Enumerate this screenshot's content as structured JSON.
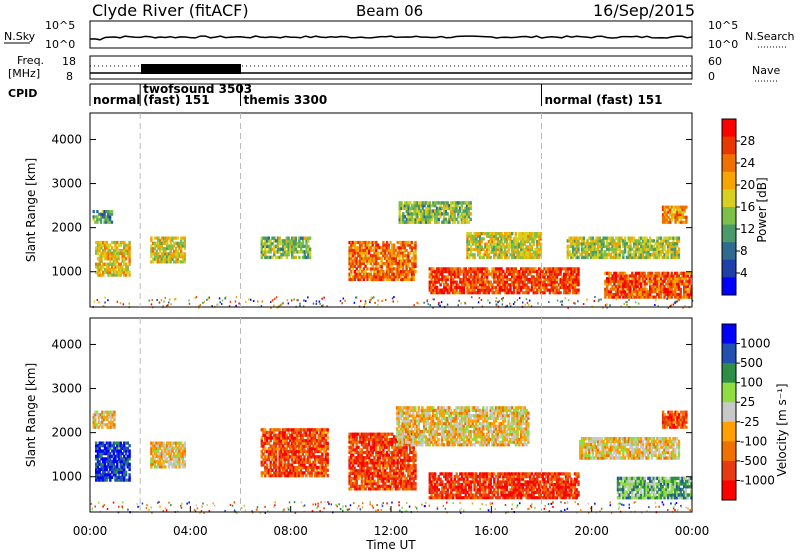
{
  "header": {
    "station": "Clyde River (fitACF)",
    "beam": "Beam 06",
    "date": "16/Sep/2015"
  },
  "top_panels": {
    "nsky_label": "N.Sky",
    "nsky_ticks": [
      "10^5",
      "10^0"
    ],
    "nsearch_label": "N.Search",
    "nsearch_ticks": [
      "10^5",
      "10^0"
    ],
    "freq_label_1": "Freq.",
    "freq_label_2": "[MHz]",
    "freq_ticks": [
      "18",
      "8"
    ],
    "nave_label": "Nave",
    "nave_ticks": [
      "60",
      "0"
    ],
    "cpid_label": "CPID",
    "modes": [
      {
        "label": "normal",
        "start": 0,
        "end": 2
      },
      {
        "label": "twofsound 3503\n(fast) 151",
        "start": 2,
        "end": 6
      },
      {
        "label": "themis 3300",
        "start": 6,
        "end": 18
      },
      {
        "label": "normal (fast) 151",
        "start": 18,
        "end": 24
      }
    ]
  },
  "chart_data": [
    {
      "type": "heatmap",
      "name": "power",
      "xlabel": "",
      "ylabel": "Slant Range [km]",
      "xlim": [
        0,
        24
      ],
      "ylim": [
        200,
        4600
      ],
      "yticks": [
        "1000",
        "2000",
        "3000",
        "4000"
      ],
      "colorbar_label": "Power [dB]",
      "colorbar_ticks": [
        "28",
        "24",
        "20",
        "16",
        "12",
        "8",
        "4"
      ],
      "colors": [
        "#0000ff",
        "#1e3fa8",
        "#2e6b8e",
        "#4a9a6a",
        "#7cc04a",
        "#d8d020",
        "#f5a400",
        "#f07000",
        "#e83800",
        "#ff0000"
      ],
      "blobs": [
        {
          "t0": 0.2,
          "t1": 1.6,
          "r0": 900,
          "r1": 1700,
          "level": 0.6
        },
        {
          "t0": 0.1,
          "t1": 0.9,
          "r0": 2100,
          "r1": 2400,
          "level": 0.35
        },
        {
          "t0": 2.4,
          "t1": 3.8,
          "r0": 1200,
          "r1": 1800,
          "level": 0.55
        },
        {
          "t0": 6.8,
          "t1": 8.8,
          "r0": 1300,
          "r1": 1800,
          "level": 0.45
        },
        {
          "t0": 10.3,
          "t1": 13.0,
          "r0": 800,
          "r1": 1700,
          "level": 0.75
        },
        {
          "t0": 12.3,
          "t1": 15.2,
          "r0": 2100,
          "r1": 2600,
          "level": 0.45
        },
        {
          "t0": 13.5,
          "t1": 19.5,
          "r0": 500,
          "r1": 1100,
          "level": 0.85
        },
        {
          "t0": 15.0,
          "t1": 18.0,
          "r0": 1300,
          "r1": 1900,
          "level": 0.55
        },
        {
          "t0": 19.0,
          "t1": 23.5,
          "r0": 1300,
          "r1": 1800,
          "level": 0.5
        },
        {
          "t0": 20.5,
          "t1": 24.0,
          "r0": 400,
          "r1": 1000,
          "level": 0.8
        },
        {
          "t0": 22.8,
          "t1": 23.8,
          "r0": 2100,
          "r1": 2500,
          "level": 0.7
        }
      ]
    },
    {
      "type": "heatmap",
      "name": "velocity",
      "xlabel": "Time UT",
      "ylabel": "Slant Range [km]",
      "xlim": [
        0,
        24
      ],
      "ylim": [
        200,
        4600
      ],
      "xticks": [
        "00:00",
        "04:00",
        "08:00",
        "12:00",
        "16:00",
        "20:00",
        "00:00"
      ],
      "yticks": [
        "1000",
        "2000",
        "3000",
        "4000"
      ],
      "colorbar_label": "Velocity [m s⁻¹]",
      "colorbar_ticks": [
        "1000",
        "500",
        "100",
        "25",
        "-25",
        "-100",
        "-500",
        "-1000"
      ],
      "colors": [
        "#ff0000",
        "#e83a10",
        "#f07000",
        "#ffa000",
        "#c8c8c8",
        "#8fdd40",
        "#2e8e48",
        "#2050b0",
        "#0000ff"
      ],
      "blobs": [
        {
          "t0": 0.2,
          "t1": 1.6,
          "r0": 900,
          "r1": 1800,
          "level": 0.88
        },
        {
          "t0": 0.1,
          "t1": 1.0,
          "r0": 2100,
          "r1": 2500,
          "level": 0.45
        },
        {
          "t0": 2.4,
          "t1": 3.8,
          "r0": 1200,
          "r1": 1800,
          "level": 0.45
        },
        {
          "t0": 6.8,
          "t1": 9.5,
          "r0": 1000,
          "r1": 2100,
          "level": 0.2
        },
        {
          "t0": 10.3,
          "t1": 13.0,
          "r0": 700,
          "r1": 2000,
          "level": 0.18
        },
        {
          "t0": 12.2,
          "t1": 17.5,
          "r0": 1700,
          "r1": 2600,
          "level": 0.45
        },
        {
          "t0": 13.5,
          "t1": 19.5,
          "r0": 500,
          "r1": 1100,
          "level": 0.15
        },
        {
          "t0": 19.5,
          "t1": 23.5,
          "r0": 1400,
          "r1": 1900,
          "level": 0.45
        },
        {
          "t0": 21.0,
          "t1": 24.0,
          "r0": 500,
          "r1": 1000,
          "level": 0.65
        },
        {
          "t0": 22.8,
          "t1": 23.8,
          "r0": 2100,
          "r1": 2500,
          "level": 0.2
        }
      ]
    }
  ]
}
